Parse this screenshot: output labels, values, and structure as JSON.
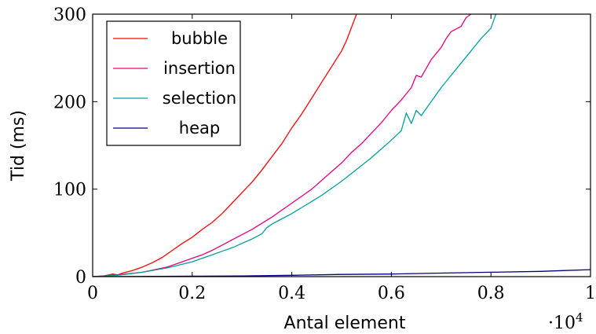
{
  "chart_data": {
    "type": "line",
    "xlabel": "Antal element",
    "ylabel": "Tid (ms)",
    "x_scale_note": {
      "base": "·10",
      "exponent": "4"
    },
    "xlim": [
      0,
      1
    ],
    "ylim": [
      0,
      300
    ],
    "x_ticks": [
      {
        "value": 0,
        "label": "0"
      },
      {
        "value": 0.2,
        "label": "0.2"
      },
      {
        "value": 0.4,
        "label": "0.4"
      },
      {
        "value": 0.6,
        "label": "0.6"
      },
      {
        "value": 0.8,
        "label": "0.8"
      },
      {
        "value": 1,
        "label": "1"
      }
    ],
    "y_ticks": [
      {
        "value": 0,
        "label": "0"
      },
      {
        "value": 100,
        "label": "100"
      },
      {
        "value": 200,
        "label": "200"
      },
      {
        "value": 300,
        "label": "300"
      }
    ],
    "legend": {
      "position": "top-left"
    },
    "grid": false,
    "series": [
      {
        "name": "bubble",
        "color": "#ff0000",
        "x": [
          0,
          0.02,
          0.04,
          0.05,
          0.06,
          0.08,
          0.1,
          0.12,
          0.14,
          0.16,
          0.18,
          0.2,
          0.22,
          0.24,
          0.26,
          0.28,
          0.3,
          0.32,
          0.34,
          0.36,
          0.38,
          0.4,
          0.42,
          0.44,
          0.46,
          0.48,
          0.5,
          0.51,
          0.52,
          0.53
        ],
        "values": [
          0,
          0.5,
          3,
          2,
          4,
          7,
          11,
          16,
          22,
          30,
          38,
          45,
          54,
          62,
          72,
          84,
          96,
          108,
          122,
          137,
          152,
          170,
          186,
          204,
          222,
          240,
          258,
          270,
          285,
          300
        ]
      },
      {
        "name": "insertion",
        "color": "#e6007e",
        "x": [
          0,
          0.05,
          0.1,
          0.15,
          0.18,
          0.2,
          0.22,
          0.24,
          0.26,
          0.28,
          0.3,
          0.32,
          0.34,
          0.36,
          0.38,
          0.4,
          0.42,
          0.44,
          0.46,
          0.48,
          0.5,
          0.52,
          0.54,
          0.56,
          0.58,
          0.6,
          0.62,
          0.64,
          0.65,
          0.66,
          0.68,
          0.7,
          0.71,
          0.72,
          0.74,
          0.75,
          0.76
        ],
        "values": [
          0,
          2,
          5,
          11,
          17,
          21,
          25,
          30,
          36,
          42,
          48,
          54,
          61,
          68,
          76,
          84,
          92,
          100,
          110,
          120,
          130,
          142,
          152,
          164,
          176,
          190,
          202,
          216,
          230,
          228,
          248,
          262,
          272,
          280,
          286,
          296,
          300
        ]
      },
      {
        "name": "selection",
        "color": "#00a09a",
        "x": [
          0,
          0.05,
          0.1,
          0.15,
          0.2,
          0.22,
          0.24,
          0.26,
          0.28,
          0.3,
          0.32,
          0.34,
          0.35,
          0.36,
          0.38,
          0.4,
          0.42,
          0.44,
          0.46,
          0.48,
          0.5,
          0.52,
          0.54,
          0.56,
          0.58,
          0.6,
          0.62,
          0.63,
          0.64,
          0.65,
          0.66,
          0.68,
          0.7,
          0.72,
          0.74,
          0.76,
          0.78,
          0.8,
          0.81
        ],
        "values": [
          0,
          1.5,
          5,
          10,
          17,
          21,
          25,
          29,
          33,
          38,
          43,
          49,
          56,
          60,
          66,
          72,
          79,
          86,
          93,
          101,
          109,
          118,
          127,
          136,
          146,
          156,
          167,
          187,
          175,
          190,
          184,
          200,
          216,
          230,
          244,
          258,
          272,
          284,
          300
        ]
      },
      {
        "name": "heap",
        "color": "#000080",
        "x": [
          0,
          0.1,
          0.2,
          0.3,
          0.4,
          0.5,
          0.6,
          0.7,
          0.8,
          0.9,
          0.95,
          1.0
        ],
        "values": [
          0,
          0.2,
          0.5,
          0.8,
          1.5,
          2.5,
          3,
          4,
          5,
          6,
          7,
          8
        ]
      }
    ]
  }
}
